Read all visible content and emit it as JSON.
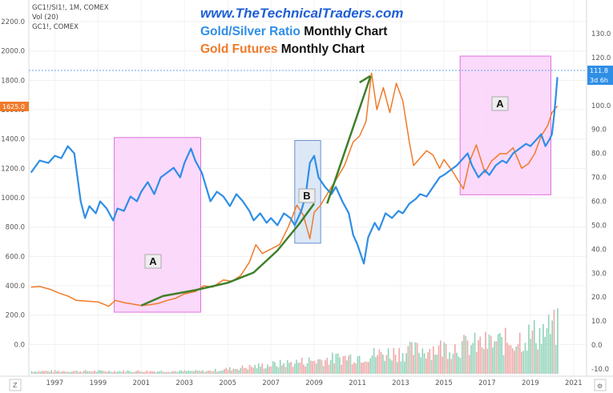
{
  "header": {
    "url": "www.TheTechnicalTraders.com",
    "line1_series": "Gold/Silver Ratio",
    "line1_rest": " Monthly Chart",
    "line2_series": "Gold Futures",
    "line2_rest": " Monthly Chart"
  },
  "info": {
    "line1": "GC1!/SI1!, 1M, COMEX",
    "line2": "Vol (20)",
    "line3": "GC1!, COMEX"
  },
  "tags": {
    "left_price": "1625.0",
    "right_price": "111.8",
    "right_countdown": "3d 6h"
  },
  "corners": {
    "left": "Z",
    "right": "⚙"
  },
  "colors": {
    "ratio": "#2f8ee6",
    "gold": "#f07a2a",
    "trend": "#3f7f2a",
    "box_a_fill": "#fad2fa",
    "box_a_border": "#e070e0",
    "box_b_fill": "#d6e4f5",
    "box_b_border": "#6c8fd0",
    "left_tag": "#f07a2a",
    "right_tag": "#2f8ee6",
    "vol_red": "#f0a7a7",
    "vol_green": "#8fd3b8"
  },
  "chart_data": {
    "type": "line",
    "x_ticks": [
      "1997",
      "1999",
      "2001",
      "2003",
      "2005",
      "2007",
      "2009",
      "2011",
      "2013",
      "2015",
      "2017",
      "2019",
      "2021"
    ],
    "xlim": [
      1995.8,
      2021.6
    ],
    "left_axis": {
      "ticks": [
        "2200.0",
        "2000.0",
        "1800.0",
        "1600.0",
        "1400.0",
        "1200.0",
        "1000.0",
        "800.0",
        "600.0",
        "400.0",
        "200.0",
        "0.0"
      ],
      "range": [
        -200,
        2250
      ]
    },
    "right_axis": {
      "ticks": [
        "130.0",
        "120.0",
        "110.0",
        "100.0",
        "90.0",
        "80.0",
        "70.0",
        "60.0",
        "50.0",
        "40.0",
        "30.0",
        "20.0",
        "10.0",
        "0.0",
        "-10.0"
      ],
      "range": [
        -12,
        135
      ]
    },
    "series": [
      {
        "name": "Gold/Silver Ratio",
        "axis": "right",
        "points": [
          [
            1995.9,
            72
          ],
          [
            1996.3,
            77
          ],
          [
            1996.7,
            76
          ],
          [
            1997.0,
            79
          ],
          [
            1997.3,
            78
          ],
          [
            1997.6,
            83
          ],
          [
            1997.9,
            80
          ],
          [
            1998.2,
            60
          ],
          [
            1998.4,
            53
          ],
          [
            1998.6,
            58
          ],
          [
            1998.9,
            55
          ],
          [
            1999.1,
            60
          ],
          [
            1999.4,
            57
          ],
          [
            1999.7,
            52
          ],
          [
            1999.9,
            57
          ],
          [
            2000.2,
            56
          ],
          [
            2000.5,
            62
          ],
          [
            2000.8,
            60
          ],
          [
            2001.0,
            64
          ],
          [
            2001.3,
            68
          ],
          [
            2001.6,
            63
          ],
          [
            2001.9,
            70
          ],
          [
            2002.2,
            72
          ],
          [
            2002.5,
            74
          ],
          [
            2002.8,
            70
          ],
          [
            2003.0,
            76
          ],
          [
            2003.3,
            82
          ],
          [
            2003.5,
            77
          ],
          [
            2003.8,
            72
          ],
          [
            2004.0,
            66
          ],
          [
            2004.2,
            60
          ],
          [
            2004.5,
            64
          ],
          [
            2004.8,
            62
          ],
          [
            2005.1,
            58
          ],
          [
            2005.4,
            63
          ],
          [
            2005.7,
            60
          ],
          [
            2006.0,
            56
          ],
          [
            2006.2,
            52
          ],
          [
            2006.5,
            55
          ],
          [
            2006.8,
            51
          ],
          [
            2007.0,
            53
          ],
          [
            2007.3,
            50
          ],
          [
            2007.6,
            55
          ],
          [
            2007.9,
            53
          ],
          [
            2008.1,
            50
          ],
          [
            2008.4,
            56
          ],
          [
            2008.6,
            62
          ],
          [
            2008.8,
            76
          ],
          [
            2009.0,
            79
          ],
          [
            2009.2,
            70
          ],
          [
            2009.5,
            66
          ],
          [
            2009.8,
            63
          ],
          [
            2010.0,
            66
          ],
          [
            2010.3,
            60
          ],
          [
            2010.6,
            55
          ],
          [
            2010.8,
            46
          ],
          [
            2011.0,
            42
          ],
          [
            2011.3,
            34
          ],
          [
            2011.5,
            45
          ],
          [
            2011.8,
            51
          ],
          [
            2012.0,
            48
          ],
          [
            2012.3,
            55
          ],
          [
            2012.6,
            53
          ],
          [
            2012.9,
            56
          ],
          [
            2013.1,
            55
          ],
          [
            2013.4,
            59
          ],
          [
            2013.7,
            61
          ],
          [
            2013.9,
            63
          ],
          [
            2014.2,
            62
          ],
          [
            2014.5,
            66
          ],
          [
            2014.8,
            70
          ],
          [
            2015.0,
            71
          ],
          [
            2015.3,
            73
          ],
          [
            2015.6,
            75
          ],
          [
            2015.9,
            78
          ],
          [
            2016.1,
            80
          ],
          [
            2016.3,
            75
          ],
          [
            2016.6,
            70
          ],
          [
            2016.9,
            73
          ],
          [
            2017.1,
            71
          ],
          [
            2017.4,
            75
          ],
          [
            2017.7,
            77
          ],
          [
            2017.9,
            76
          ],
          [
            2018.2,
            80
          ],
          [
            2018.5,
            82
          ],
          [
            2018.8,
            84
          ],
          [
            2019.0,
            83
          ],
          [
            2019.3,
            86
          ],
          [
            2019.5,
            88
          ],
          [
            2019.7,
            83
          ],
          [
            2019.9,
            86
          ],
          [
            2020.0,
            88
          ],
          [
            2020.1,
            96
          ],
          [
            2020.18,
            104
          ],
          [
            2020.25,
            111.8
          ]
        ]
      },
      {
        "name": "Gold Futures",
        "axis": "left",
        "points": [
          [
            1995.9,
            390
          ],
          [
            1996.3,
            395
          ],
          [
            1996.8,
            375
          ],
          [
            1997.2,
            350
          ],
          [
            1997.6,
            330
          ],
          [
            1998.0,
            300
          ],
          [
            1998.5,
            295
          ],
          [
            1999.0,
            290
          ],
          [
            1999.5,
            260
          ],
          [
            1999.8,
            300
          ],
          [
            2000.2,
            285
          ],
          [
            2000.6,
            275
          ],
          [
            2001.0,
            265
          ],
          [
            2001.4,
            270
          ],
          [
            2001.8,
            280
          ],
          [
            2002.2,
            300
          ],
          [
            2002.6,
            315
          ],
          [
            2003.0,
            345
          ],
          [
            2003.5,
            360
          ],
          [
            2003.9,
            400
          ],
          [
            2004.3,
            390
          ],
          [
            2004.8,
            440
          ],
          [
            2005.2,
            430
          ],
          [
            2005.6,
            470
          ],
          [
            2006.0,
            560
          ],
          [
            2006.3,
            680
          ],
          [
            2006.6,
            620
          ],
          [
            2007.0,
            650
          ],
          [
            2007.4,
            680
          ],
          [
            2007.8,
            800
          ],
          [
            2008.2,
            950
          ],
          [
            2008.5,
            880
          ],
          [
            2008.8,
            720
          ],
          [
            2009.0,
            900
          ],
          [
            2009.3,
            950
          ],
          [
            2009.7,
            1050
          ],
          [
            2010.0,
            1120
          ],
          [
            2010.4,
            1220
          ],
          [
            2010.8,
            1380
          ],
          [
            2011.1,
            1420
          ],
          [
            2011.4,
            1520
          ],
          [
            2011.65,
            1850
          ],
          [
            2011.9,
            1600
          ],
          [
            2012.2,
            1750
          ],
          [
            2012.5,
            1580
          ],
          [
            2012.8,
            1780
          ],
          [
            2013.1,
            1660
          ],
          [
            2013.4,
            1380
          ],
          [
            2013.6,
            1220
          ],
          [
            2013.9,
            1270
          ],
          [
            2014.2,
            1320
          ],
          [
            2014.5,
            1290
          ],
          [
            2014.8,
            1200
          ],
          [
            2015.0,
            1260
          ],
          [
            2015.4,
            1180
          ],
          [
            2015.9,
            1060
          ],
          [
            2016.2,
            1250
          ],
          [
            2016.5,
            1360
          ],
          [
            2016.9,
            1170
          ],
          [
            2017.2,
            1250
          ],
          [
            2017.6,
            1300
          ],
          [
            2017.9,
            1300
          ],
          [
            2018.2,
            1340
          ],
          [
            2018.6,
            1200
          ],
          [
            2018.9,
            1230
          ],
          [
            2019.2,
            1300
          ],
          [
            2019.5,
            1420
          ],
          [
            2019.8,
            1490
          ],
          [
            2020.0,
            1580
          ],
          [
            2020.25,
            1625
          ]
        ]
      }
    ]
  }
}
